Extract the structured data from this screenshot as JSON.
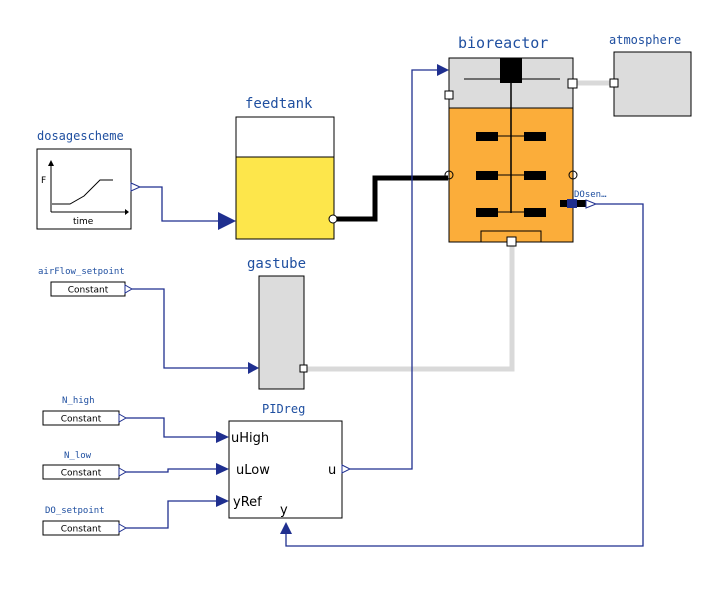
{
  "components": {
    "dosagescheme": {
      "label": "dosagescheme",
      "axis_y": "F",
      "axis_x": "time"
    },
    "feedtank": {
      "label": "feedtank"
    },
    "bioreactor": {
      "label": "bioreactor"
    },
    "atmosphere": {
      "label": "atmosphere"
    },
    "do_sensor": {
      "label": "DOsen…"
    },
    "gastube": {
      "label": "gastube"
    },
    "airflow_setpoint": {
      "label": "airFlow_setpoint",
      "block_text": "Constant"
    },
    "n_high": {
      "label": "N_high",
      "block_text": "Constant"
    },
    "n_low": {
      "label": "N_low",
      "block_text": "Constant"
    },
    "do_setpoint": {
      "label": "DO_setpoint",
      "block_text": "Constant"
    },
    "pidreg": {
      "label": "PIDreg",
      "in_uhigh": "uHigh",
      "in_ulow": "uLow",
      "in_yref": "yRef",
      "out_u": "u",
      "in_y": "y"
    }
  },
  "colors": {
    "signal_line": "#1f2f8f",
    "label_text": "#1f4fa0",
    "tank_liquid": "#fde64b",
    "reactor_liquid": "#fbad3a",
    "reactor_headspace": "#dcdcdc",
    "gas_line": "#d9d9d9",
    "liquid_line": "#000000"
  }
}
